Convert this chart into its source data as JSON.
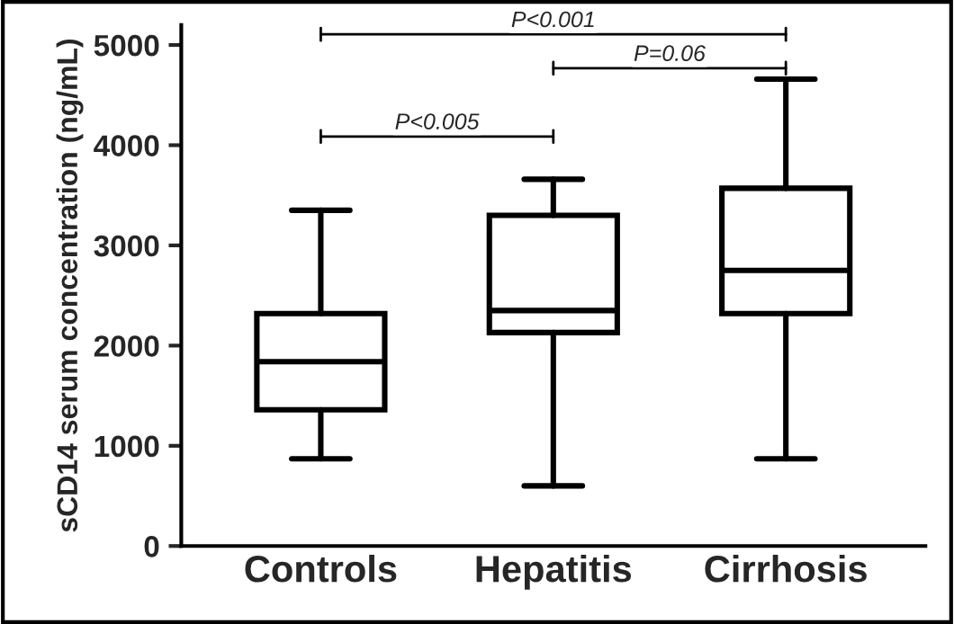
{
  "chart_data": {
    "type": "box",
    "ylabel": "sCD14 serum concentration (ng/mL)",
    "categories": [
      "Controls",
      "Hepatitis",
      "Cirrhosis"
    ],
    "boxes": [
      {
        "low": 870,
        "q1": 1360,
        "median": 1840,
        "q3": 2320,
        "high": 3350
      },
      {
        "low": 600,
        "q1": 2130,
        "median": 2350,
        "q3": 3300,
        "high": 3660
      },
      {
        "low": 870,
        "q1": 2320,
        "median": 2750,
        "q3": 3570,
        "high": 4660
      }
    ],
    "color": "#ffffff",
    "ylim": [
      0,
      5200
    ],
    "yticks": [
      0,
      1000,
      2000,
      3000,
      4000,
      5000
    ],
    "annotations": [
      "P<0.001",
      "P=0.06",
      "P<0.005"
    ],
    "grid": false,
    "legend": false
  }
}
